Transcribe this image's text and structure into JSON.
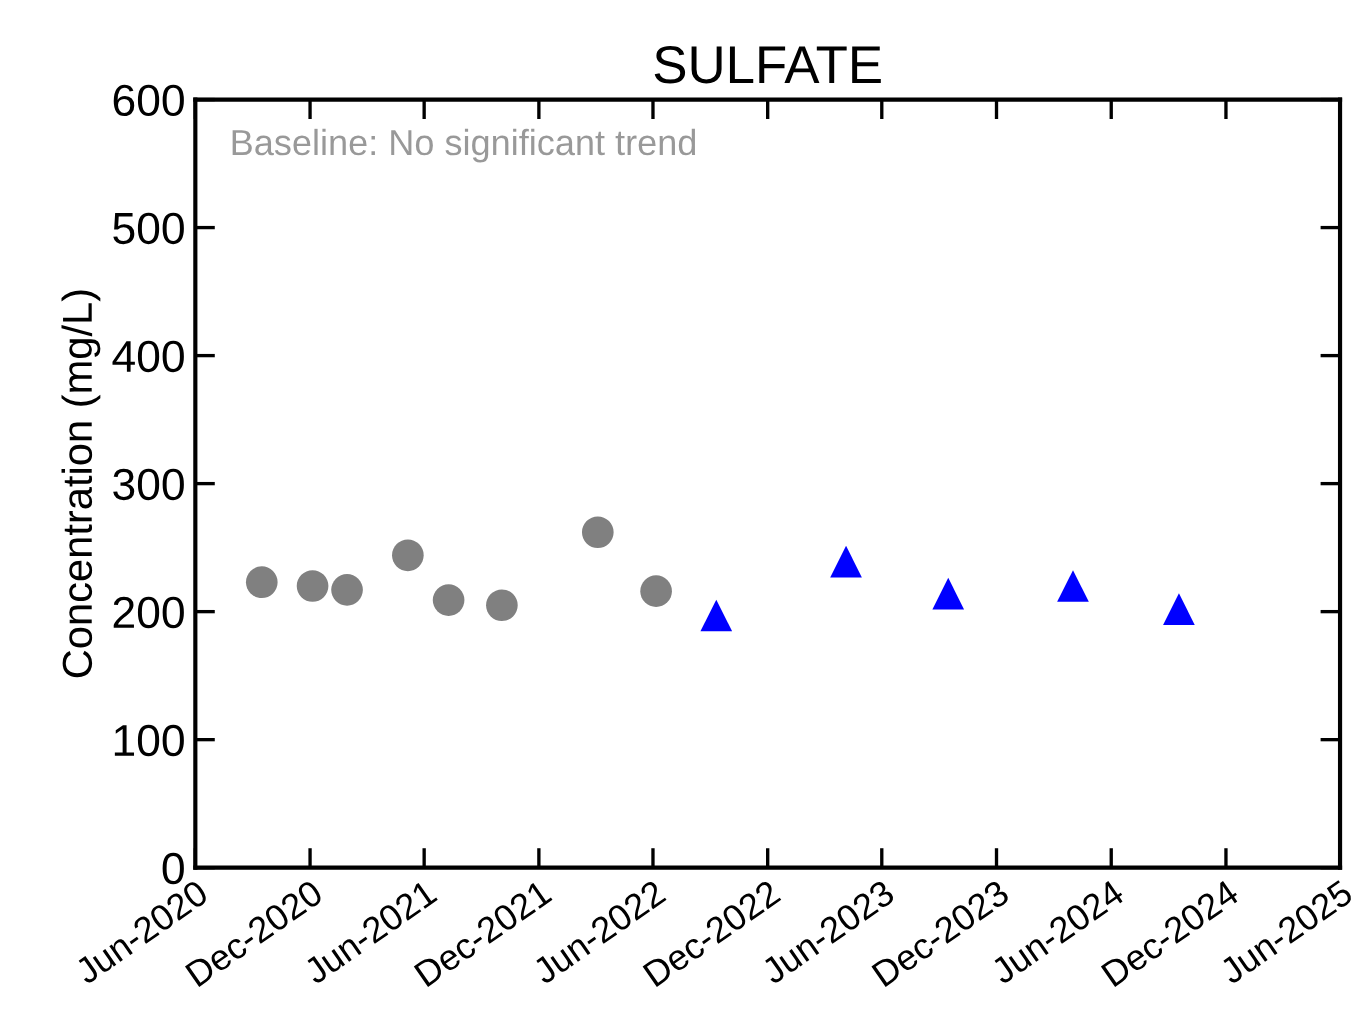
{
  "chart_data": {
    "type": "scatter",
    "title": "SULFATE",
    "ylabel": "Concentration (mg/L)",
    "annotations": [
      "Baseline: No significant trend"
    ],
    "series": [
      {
        "color": "#808080",
        "marker": "circle",
        "x": [
          "2020-09-15",
          "2020-12-05",
          "2021-01-29",
          "2021-05-06",
          "2021-07-10",
          "2021-10-03",
          "2022-03-05",
          "2022-06-06"
        ],
        "values": [
          223,
          220,
          217,
          244,
          209,
          205,
          262,
          216
        ]
      },
      {
        "color": "#0000ff",
        "marker": "triangle",
        "x": [
          "2022-09-10",
          "2023-04-05",
          "2023-09-15",
          "2024-04-01",
          "2024-09-17"
        ],
        "values": [
          197,
          239,
          214,
          220,
          202
        ]
      }
    ],
    "xlim": [
      "2020-06-01",
      "2025-06-01"
    ],
    "xticks": [
      {
        "value": "2020-06-01",
        "label": "Jun-2020"
      },
      {
        "value": "2020-12-01",
        "label": "Dec-2020"
      },
      {
        "value": "2021-06-01",
        "label": "Jun-2021"
      },
      {
        "value": "2021-12-01",
        "label": "Dec-2021"
      },
      {
        "value": "2022-06-01",
        "label": "Jun-2022"
      },
      {
        "value": "2022-12-01",
        "label": "Dec-2022"
      },
      {
        "value": "2023-06-01",
        "label": "Jun-2023"
      },
      {
        "value": "2023-12-01",
        "label": "Dec-2023"
      },
      {
        "value": "2024-06-01",
        "label": "Jun-2024"
      },
      {
        "value": "2024-12-01",
        "label": "Dec-2024"
      },
      {
        "value": "2025-06-01",
        "label": "Jun-2025"
      }
    ],
    "ylim": [
      0,
      600
    ],
    "yticks": [
      0,
      100,
      200,
      300,
      400,
      500,
      600
    ],
    "grid": false,
    "legend": false
  }
}
